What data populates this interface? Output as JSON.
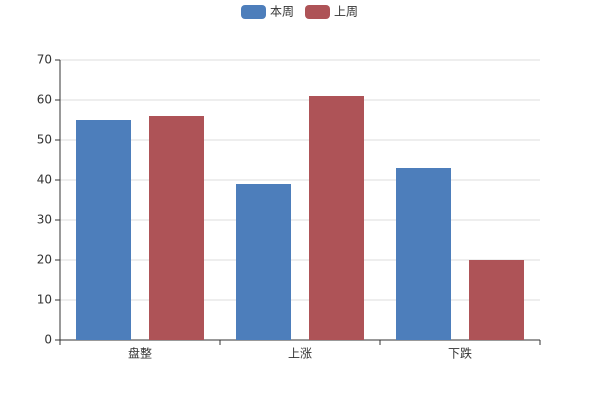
{
  "chart_data": {
    "type": "bar",
    "categories": [
      "盘整",
      "上涨",
      "下跌"
    ],
    "series": [
      {
        "name": "本周",
        "color": "#4d7ebb",
        "values": [
          55,
          39,
          43
        ]
      },
      {
        "name": "上周",
        "color": "#ae5357",
        "values": [
          56,
          61,
          20
        ]
      }
    ],
    "ylim": [
      0,
      70
    ],
    "yticks": [
      0,
      10,
      20,
      30,
      40,
      50,
      60,
      70
    ],
    "grid": true,
    "legend": "top"
  }
}
